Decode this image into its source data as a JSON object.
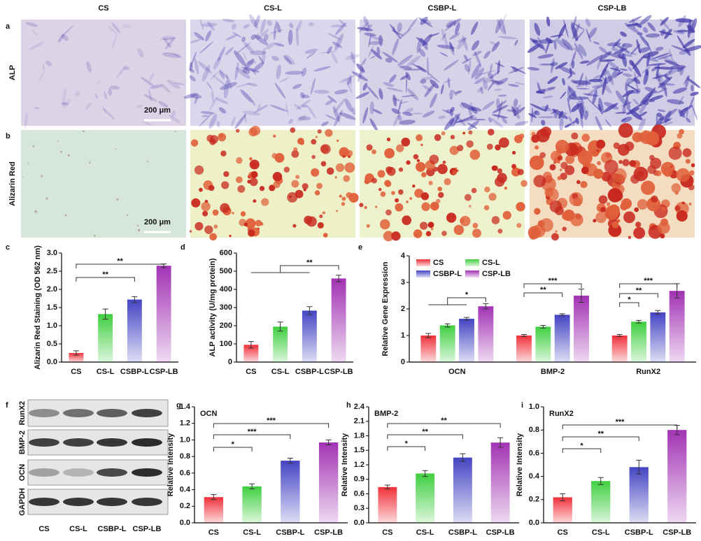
{
  "panel_labels": [
    "a",
    "b",
    "c",
    "d",
    "e",
    "f",
    "g",
    "h",
    "i"
  ],
  "column_headers": [
    "CS",
    "CS-L",
    "CSBP-L",
    "CSP-LB"
  ],
  "row_labels": [
    "ALP",
    "Alizarin Red"
  ],
  "scale_bars": [
    "200 μm",
    "200 μm"
  ],
  "blot": {
    "bands": [
      "RunX2",
      "BMP-2",
      "OCN",
      "GAPDH"
    ],
    "lanes": [
      "CS",
      "CS-L",
      "CSBP-L",
      "CSP-LB"
    ]
  },
  "chart_data": [
    {
      "type": "bar",
      "y_label": "Alizarin Red Staining (OD 562 nm)",
      "categories": [
        "CS",
        "CS-L",
        "CSBP-L",
        "CSP-LB"
      ],
      "values": [
        0.25,
        1.32,
        1.72,
        2.65
      ],
      "errors": [
        0.06,
        0.14,
        0.08,
        0.05
      ],
      "colors": [
        "#f0303a",
        "#3fcf3f",
        "#4444c4",
        "#a232b4"
      ],
      "ylim": [
        0,
        3
      ],
      "yticks": [
        {
          "value": 0,
          "label": "0.0"
        },
        0.5,
        {
          "value": 1,
          "label": "1.0"
        },
        1.5,
        {
          "value": 2,
          "label": "2.0"
        },
        2.5,
        {
          "value": 3,
          "label": "3.0"
        }
      ],
      "annotations": [
        "**",
        "**"
      ]
    },
    {
      "type": "bar",
      "y_label": "ALP activity (U/mg protein)",
      "categories": [
        "CS",
        "CS-L",
        "CSBP-L",
        "CSP-LB"
      ],
      "values": [
        95,
        195,
        283,
        460
      ],
      "errors": [
        18,
        25,
        22,
        18
      ],
      "colors": [
        "#f0303a",
        "#3fcf3f",
        "#4444c4",
        "#a232b4"
      ],
      "ylim": [
        0,
        600
      ],
      "yticks": [
        0,
        100,
        200,
        300,
        400,
        500,
        600
      ],
      "annotations": [
        "**"
      ]
    },
    {
      "type": "bar",
      "y_label": "Relative Gene Expression",
      "categories": [
        "OCN",
        "BMP-2",
        "RunX2"
      ],
      "series": [
        {
          "name": "CS",
          "color": "#f0303a",
          "values": [
            1.0,
            1.0,
            1.0
          ],
          "errors": [
            0.08,
            0.04,
            0.04
          ]
        },
        {
          "name": "CS-L",
          "color": "#3fcf3f",
          "values": [
            1.38,
            1.33,
            1.52
          ],
          "errors": [
            0.06,
            0.05,
            0.05
          ]
        },
        {
          "name": "CSBP-L",
          "color": "#4444c4",
          "values": [
            1.63,
            1.78,
            1.87
          ],
          "errors": [
            0.05,
            0.04,
            0.07
          ]
        },
        {
          "name": "CSP-LB",
          "color": "#a232b4",
          "values": [
            2.1,
            2.5,
            2.68
          ],
          "errors": [
            0.1,
            0.25,
            0.27
          ]
        }
      ],
      "legend": "upper left",
      "ylim": [
        0,
        4
      ],
      "yticks": [
        0,
        1,
        2,
        3,
        4
      ],
      "annotations": [
        "*",
        "***",
        "**",
        "***",
        "**",
        "*"
      ]
    },
    {
      "type": "bar",
      "title": "OCN",
      "y_label": "Relative Intensity",
      "categories": [
        "CS",
        "CS-L",
        "CSBP-L",
        "CSP-LB"
      ],
      "values": [
        0.31,
        0.44,
        0.75,
        0.97
      ],
      "errors": [
        0.03,
        0.03,
        0.03,
        0.03
      ],
      "colors": [
        "#f0303a",
        "#3fcf3f",
        "#4444c4",
        "#a232b4"
      ],
      "ylim": [
        0,
        1.4
      ],
      "yticks": [
        {
          "value": 0,
          "label": "0.0"
        },
        0.2,
        0.4,
        0.6,
        0.8,
        {
          "value": 1,
          "label": "1.0"
        },
        1.2,
        1.4
      ],
      "annotations": [
        "***",
        "***",
        "*"
      ]
    },
    {
      "type": "bar",
      "title": "BMP-2",
      "y_label": "Relative Intensity",
      "categories": [
        "CS",
        "CS-L",
        "CSBP-L",
        "CSP-LB"
      ],
      "values": [
        0.74,
        1.02,
        1.35,
        1.66
      ],
      "errors": [
        0.04,
        0.06,
        0.08,
        0.1
      ],
      "colors": [
        "#f0303a",
        "#3fcf3f",
        "#4444c4",
        "#a232b4"
      ],
      "ylim": [
        0,
        2.4
      ],
      "yticks": [
        {
          "value": 0,
          "label": "0.0"
        },
        0.3,
        0.6,
        0.9,
        1.2,
        1.5,
        1.8,
        2.1,
        2.4
      ],
      "annotations": [
        "**",
        "**",
        "*"
      ]
    },
    {
      "type": "bar",
      "title": "RunX2",
      "y_label": "Relative Intensity",
      "categories": [
        "CS",
        "CS-L",
        "CSBP-L",
        "CSP-LB"
      ],
      "values": [
        0.22,
        0.36,
        0.48,
        0.8
      ],
      "errors": [
        0.03,
        0.03,
        0.06,
        0.04
      ],
      "colors": [
        "#f0303a",
        "#3fcf3f",
        "#4444c4",
        "#a232b4"
      ],
      "ylim": [
        0,
        1
      ],
      "yticks": [
        {
          "value": 0,
          "label": "0.0"
        },
        0.2,
        0.4,
        0.6,
        0.8,
        {
          "value": 1,
          "label": "1.0"
        }
      ],
      "annotations": [
        "***",
        "**",
        "*"
      ]
    }
  ]
}
